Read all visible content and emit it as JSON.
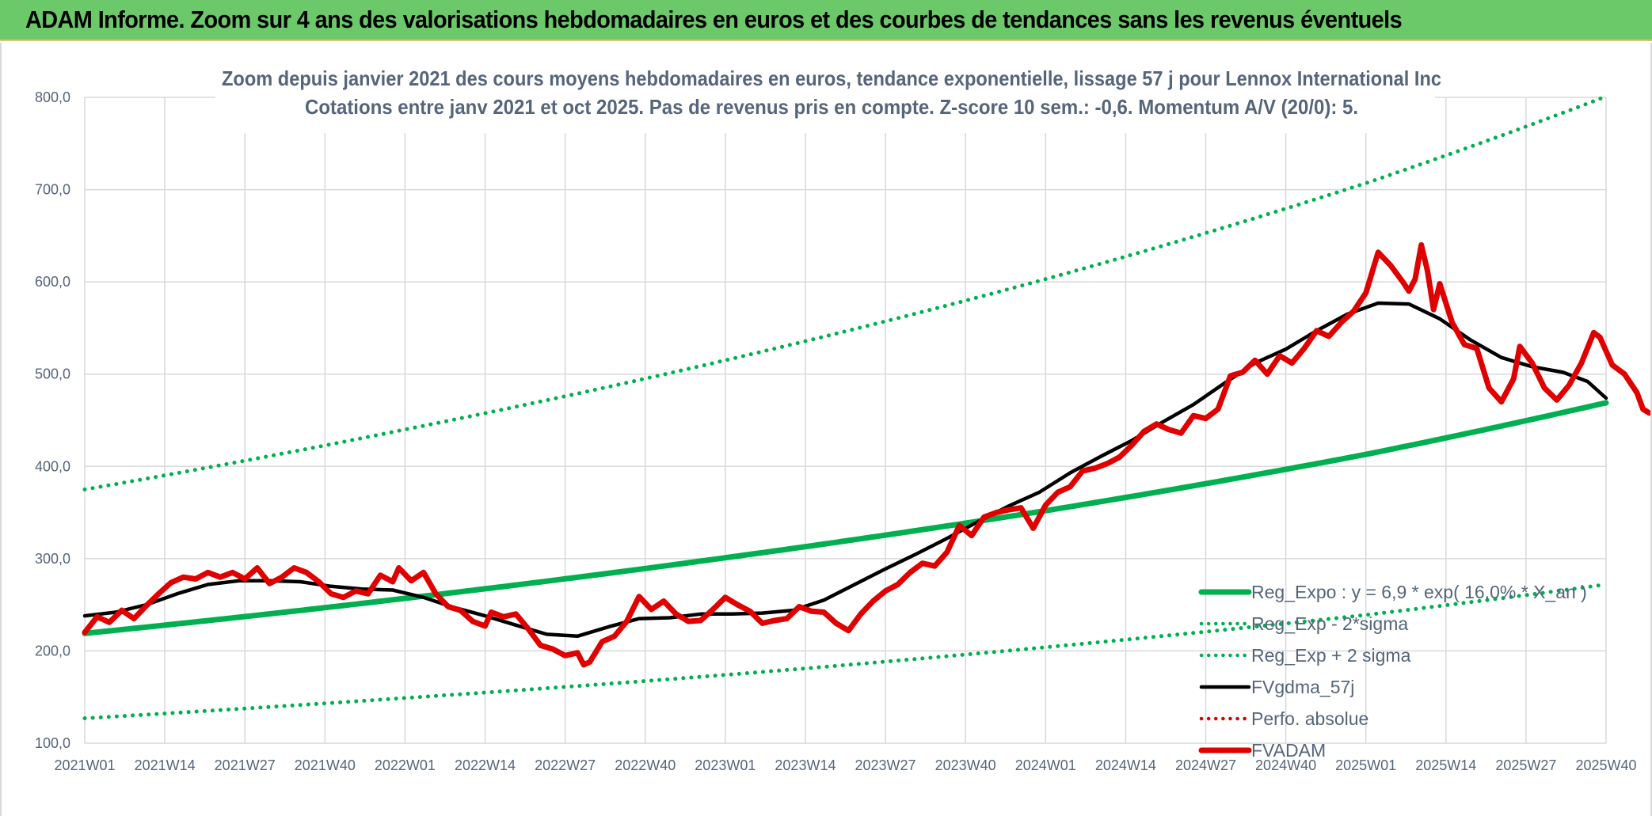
{
  "banner": {
    "title": "ADAM Informe. Zoom sur 4 ans des valorisations hebdomadaires en euros et des courbes de tendances sans les revenus éventuels"
  },
  "colors": {
    "banner_bg": "#6cc96a",
    "reg_expo": "#00b050",
    "fvgdma": "#000000",
    "perfo": "#e00000",
    "fvadam": "#e00000",
    "text": "#55657a",
    "grid": "#d9d9d9"
  },
  "chart_data": {
    "type": "line",
    "title": "Zoom depuis janvier 2021 des cours moyens hebdomadaires en euros, tendance exponentielle, lissage 57 j pour Lennox International Inc",
    "subtitle": "Cotations entre janv 2021 et oct 2025. Pas de revenus pris en compte. Z-score 10 sem.: -0,6. Momentum A/V (20/0): 5.",
    "xlabel": "",
    "ylabel": "",
    "ylim": [
      100,
      800
    ],
    "y_ticks": [
      "100,0",
      "200,0",
      "300,0",
      "400,0",
      "500,0",
      "600,0",
      "700,0",
      "800,0"
    ],
    "x_ticks": [
      "2021W01",
      "2021W14",
      "2021W27",
      "2021W40",
      "2022W01",
      "2022W14",
      "2022W27",
      "2022W40",
      "2023W01",
      "2023W14",
      "2023W27",
      "2023W40",
      "2024W01",
      "2024W14",
      "2024W27",
      "2024W40",
      "2025W01",
      "2025W14",
      "2025W27",
      "2025W40"
    ],
    "grid": true,
    "legend_position": "bottom-right",
    "x_unit": "weeks since 2021W01",
    "series": [
      {
        "name": "Reg_Expo : y = 6,9 * exp( 16,0% *  X_an )",
        "style": "solid-thick",
        "color": "#00b050",
        "points": [
          [
            0,
            219
          ],
          [
            52,
            257
          ],
          [
            104,
            301
          ],
          [
            156,
            352
          ],
          [
            208,
            413
          ],
          [
            247,
            469
          ]
        ]
      },
      {
        "name": "Reg_Exp - 2*sigma",
        "style": "dotted",
        "color": "#00b050",
        "points": [
          [
            0,
            127
          ],
          [
            52,
            149
          ],
          [
            104,
            174
          ],
          [
            156,
            204
          ],
          [
            208,
            239
          ],
          [
            247,
            272
          ]
        ]
      },
      {
        "name": "Reg_Exp + 2 sigma",
        "style": "dotted",
        "color": "#00b050",
        "points": [
          [
            0,
            375
          ],
          [
            52,
            440
          ],
          [
            104,
            515
          ],
          [
            156,
            603
          ],
          [
            208,
            707
          ],
          [
            247,
            801
          ]
        ]
      },
      {
        "name": "FVgdma_57j",
        "style": "solid",
        "color": "#000000",
        "points": [
          [
            0,
            238
          ],
          [
            5,
            242
          ],
          [
            10,
            250
          ],
          [
            15,
            262
          ],
          [
            20,
            272
          ],
          [
            25,
            276
          ],
          [
            30,
            276
          ],
          [
            35,
            275
          ],
          [
            40,
            270
          ],
          [
            45,
            267
          ],
          [
            50,
            266
          ],
          [
            55,
            258
          ],
          [
            60,
            247
          ],
          [
            65,
            238
          ],
          [
            70,
            228
          ],
          [
            75,
            218
          ],
          [
            80,
            216
          ],
          [
            85,
            226
          ],
          [
            90,
            235
          ],
          [
            95,
            236
          ],
          [
            100,
            240
          ],
          [
            105,
            240
          ],
          [
            110,
            241
          ],
          [
            115,
            244
          ],
          [
            120,
            255
          ],
          [
            125,
            272
          ],
          [
            130,
            289
          ],
          [
            135,
            305
          ],
          [
            140,
            322
          ],
          [
            145,
            340
          ],
          [
            150,
            357
          ],
          [
            155,
            372
          ],
          [
            160,
            393
          ],
          [
            165,
            411
          ],
          [
            170,
            428
          ],
          [
            175,
            448
          ],
          [
            180,
            467
          ],
          [
            185,
            490
          ],
          [
            190,
            512
          ],
          [
            195,
            527
          ],
          [
            200,
            547
          ],
          [
            205,
            565
          ],
          [
            210,
            577
          ],
          [
            215,
            576
          ],
          [
            220,
            560
          ],
          [
            225,
            537
          ],
          [
            230,
            518
          ],
          [
            235,
            508
          ],
          [
            240,
            502
          ],
          [
            244,
            492
          ],
          [
            247,
            474
          ]
        ]
      },
      {
        "name": "Perfo. absolue",
        "style": "dotted",
        "color": "#e00000",
        "points": []
      },
      {
        "name": "FVADAM",
        "style": "solid-thick",
        "color": "#e00000",
        "points": [
          [
            0,
            220
          ],
          [
            2,
            237
          ],
          [
            4,
            231
          ],
          [
            6,
            244
          ],
          [
            8,
            235
          ],
          [
            10,
            249
          ],
          [
            12,
            262
          ],
          [
            14,
            274
          ],
          [
            16,
            280
          ],
          [
            18,
            278
          ],
          [
            20,
            285
          ],
          [
            22,
            280
          ],
          [
            24,
            285
          ],
          [
            26,
            278
          ],
          [
            28,
            290
          ],
          [
            30,
            273
          ],
          [
            32,
            280
          ],
          [
            34,
            290
          ],
          [
            36,
            285
          ],
          [
            38,
            275
          ],
          [
            40,
            262
          ],
          [
            42,
            258
          ],
          [
            44,
            265
          ],
          [
            46,
            262
          ],
          [
            48,
            282
          ],
          [
            50,
            275
          ],
          [
            51,
            290
          ],
          [
            53,
            276
          ],
          [
            55,
            285
          ],
          [
            57,
            262
          ],
          [
            59,
            248
          ],
          [
            61,
            244
          ],
          [
            63,
            232
          ],
          [
            65,
            227
          ],
          [
            66,
            242
          ],
          [
            68,
            237
          ],
          [
            70,
            240
          ],
          [
            72,
            224
          ],
          [
            74,
            206
          ],
          [
            76,
            202
          ],
          [
            78,
            195
          ],
          [
            80,
            198
          ],
          [
            81,
            185
          ],
          [
            82,
            188
          ],
          [
            84,
            210
          ],
          [
            86,
            216
          ],
          [
            88,
            232
          ],
          [
            90,
            259
          ],
          [
            92,
            245
          ],
          [
            94,
            254
          ],
          [
            96,
            240
          ],
          [
            98,
            232
          ],
          [
            100,
            233
          ],
          [
            102,
            245
          ],
          [
            104,
            258
          ],
          [
            106,
            250
          ],
          [
            108,
            243
          ],
          [
            110,
            230
          ],
          [
            112,
            233
          ],
          [
            114,
            235
          ],
          [
            116,
            248
          ],
          [
            118,
            243
          ],
          [
            120,
            242
          ],
          [
            122,
            230
          ],
          [
            124,
            222
          ],
          [
            126,
            240
          ],
          [
            128,
            254
          ],
          [
            130,
            265
          ],
          [
            132,
            272
          ],
          [
            134,
            285
          ],
          [
            136,
            295
          ],
          [
            138,
            292
          ],
          [
            140,
            307
          ],
          [
            142,
            336
          ],
          [
            144,
            325
          ],
          [
            146,
            345
          ],
          [
            148,
            350
          ],
          [
            150,
            353
          ],
          [
            152,
            355
          ],
          [
            154,
            333
          ],
          [
            156,
            358
          ],
          [
            158,
            372
          ],
          [
            160,
            378
          ],
          [
            162,
            395
          ],
          [
            164,
            398
          ],
          [
            166,
            403
          ],
          [
            168,
            410
          ],
          [
            170,
            423
          ],
          [
            172,
            438
          ],
          [
            174,
            446
          ],
          [
            176,
            440
          ],
          [
            178,
            436
          ],
          [
            180,
            455
          ],
          [
            182,
            452
          ],
          [
            184,
            462
          ],
          [
            186,
            498
          ],
          [
            188,
            502
          ],
          [
            190,
            515
          ],
          [
            192,
            500
          ],
          [
            194,
            520
          ],
          [
            196,
            512
          ],
          [
            198,
            528
          ],
          [
            200,
            547
          ],
          [
            202,
            541
          ],
          [
            204,
            556
          ],
          [
            206,
            568
          ],
          [
            208,
            588
          ],
          [
            210,
            632
          ],
          [
            212,
            618
          ],
          [
            214,
            600
          ],
          [
            215,
            590
          ],
          [
            216,
            603
          ],
          [
            217,
            640
          ],
          [
            218,
            612
          ],
          [
            219,
            570
          ],
          [
            220,
            598
          ],
          [
            222,
            556
          ],
          [
            224,
            532
          ],
          [
            226,
            528
          ],
          [
            228,
            485
          ],
          [
            230,
            470
          ],
          [
            232,
            495
          ],
          [
            233,
            530
          ],
          [
            235,
            512
          ],
          [
            237,
            485
          ],
          [
            239,
            472
          ],
          [
            241,
            488
          ],
          [
            243,
            512
          ],
          [
            245,
            545
          ],
          [
            246,
            540
          ],
          [
            248,
            510
          ],
          [
            250,
            500
          ],
          [
            252,
            480
          ],
          [
            253,
            462
          ],
          [
            254,
            458
          ]
        ]
      }
    ]
  }
}
